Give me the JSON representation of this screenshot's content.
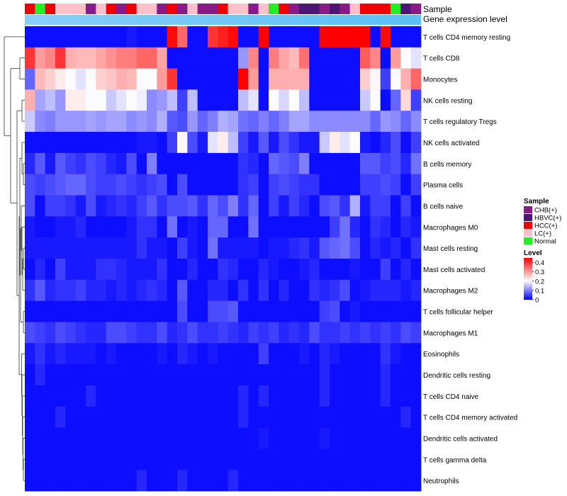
{
  "chart_data": {
    "type": "heatmap",
    "title": "",
    "annotation_labels": [
      "Sample",
      "Gene expression level"
    ],
    "sample_legend": {
      "title": "Sample",
      "entries": [
        {
          "name": "CHB(+)",
          "color": "#8B1A89"
        },
        {
          "name": "HBVC(+)",
          "color": "#4B1678"
        },
        {
          "name": "HCC(+)",
          "color": "#F00000"
        },
        {
          "name": "LC(+)",
          "color": "#FFC0CB"
        },
        {
          "name": "Normal",
          "color": "#22EE22"
        }
      ]
    },
    "level_legend": {
      "title": "Level",
      "ticks": [
        "0.4",
        "0.3",
        "0.2",
        "0.1",
        "0"
      ],
      "min": 0,
      "max": 0.45,
      "colors": [
        "#0000FF",
        "#FFFFFF",
        "#FF0000"
      ]
    },
    "sample_annotation": [
      "HCC(+)",
      "Normal",
      "HCC(+)",
      "LC(+)",
      "LC(+)",
      "LC(+)",
      "CHB(+)",
      "LC(+)",
      "HCC(+)",
      "CHB(+)",
      "HCC(+)",
      "LC(+)",
      "LC(+)",
      "CHB(+)",
      "HCC(+)",
      "CHB(+)",
      "LC(+)",
      "CHB(+)",
      "CHB(+)",
      "HCC(+)",
      "LC(+)",
      "LC(+)",
      "CHB(+)",
      "LC(+)",
      "Normal",
      "HCC(+)",
      "CHB(+)",
      "HBVC(+)",
      "HBVC(+)",
      "CHB(+)",
      "HBVC(+)",
      "CHB(+)",
      "LC(+)",
      "HCC(+)",
      "HCC(+)",
      "HCC(+)",
      "Normal",
      "HBVC(+)",
      "CHB(+)"
    ],
    "gene_expression_colors": [
      "#87CEFA",
      "#00B0F0"
    ],
    "rows": [
      {
        "name": "T cells CD4 memory resting",
        "values": [
          0.01,
          0.01,
          0.01,
          0.01,
          0.01,
          0.01,
          0.01,
          0.01,
          0.01,
          0.01,
          0.02,
          0.01,
          0.01,
          0.01,
          0.44,
          0.35,
          0.01,
          0.01,
          0.4,
          0.42,
          0.44,
          0.01,
          0.01,
          0.45,
          0.01,
          0.01,
          0.01,
          0.01,
          0.01,
          0.45,
          0.45,
          0.45,
          0.45,
          0.45,
          0.01,
          0.44,
          0.01,
          0.01,
          0.01
        ]
      },
      {
        "name": "T cells CD8",
        "values": [
          0.4,
          0.3,
          0.32,
          0.4,
          0.28,
          0.27,
          0.27,
          0.29,
          0.31,
          0.33,
          0.33,
          0.35,
          0.35,
          0.29,
          0.01,
          0.01,
          0.01,
          0.01,
          0.01,
          0.01,
          0.01,
          0.12,
          0.32,
          0.01,
          0.33,
          0.29,
          0.27,
          0.34,
          0.01,
          0.01,
          0.01,
          0.01,
          0.01,
          0.36,
          0.32,
          0.01,
          0.3,
          0.2,
          0.18
        ]
      },
      {
        "name": "Monocytes",
        "values": [
          0.08,
          0.27,
          0.25,
          0.22,
          0.2,
          0.18,
          0.2,
          0.25,
          0.26,
          0.28,
          0.27,
          0.2,
          0.2,
          0.3,
          0.4,
          0.01,
          0.01,
          0.01,
          0.01,
          0.01,
          0.01,
          0.45,
          0.3,
          0.01,
          0.28,
          0.28,
          0.28,
          0.28,
          0.01,
          0.01,
          0.01,
          0.01,
          0.01,
          0.25,
          0.21,
          0.05,
          0.2,
          0.28,
          0.35
        ]
      },
      {
        "name": "NK cells resting",
        "values": [
          0.28,
          0.13,
          0.15,
          0.12,
          0.22,
          0.22,
          0.2,
          0.2,
          0.16,
          0.18,
          0.2,
          0.19,
          0.11,
          0.12,
          0.15,
          0.05,
          0.15,
          0.01,
          0.01,
          0.01,
          0.01,
          0.15,
          0.18,
          0.01,
          0.2,
          0.17,
          0.2,
          0.15,
          0.01,
          0.01,
          0.01,
          0.01,
          0.01,
          0.16,
          0.2,
          0.01,
          0.08,
          0.24,
          0.05
        ]
      },
      {
        "name": "T cells regulatory  Tregs",
        "values": [
          0.16,
          0.11,
          0.1,
          0.12,
          0.12,
          0.12,
          0.13,
          0.12,
          0.13,
          0.13,
          0.11,
          0.12,
          0.11,
          0.14,
          0.07,
          0.06,
          0.12,
          0.08,
          0.1,
          0.14,
          0.13,
          0.09,
          0.08,
          0.1,
          0.08,
          0.1,
          0.13,
          0.13,
          0.11,
          0.11,
          0.11,
          0.11,
          0.11,
          0.11,
          0.08,
          0.12,
          0.11,
          0.08,
          0.11
        ]
      },
      {
        "name": "NK cells activated",
        "values": [
          0.01,
          0.01,
          0.01,
          0.01,
          0.01,
          0.01,
          0.01,
          0.01,
          0.01,
          0.01,
          0.01,
          0.02,
          0.02,
          0.01,
          0.05,
          0.21,
          0.06,
          0.02,
          0.18,
          0.22,
          0.15,
          0.05,
          0.02,
          0.07,
          0.02,
          0.06,
          0.04,
          0.02,
          0.02,
          0.16,
          0.22,
          0.18,
          0.2,
          0.02,
          0.01,
          0.03,
          0.06,
          0.01,
          0.05
        ]
      },
      {
        "name": "B cells memory",
        "values": [
          0.03,
          0.07,
          0.02,
          0.07,
          0.05,
          0.04,
          0.06,
          0.05,
          0.03,
          0.02,
          0.06,
          0.01,
          0.1,
          0.01,
          0.01,
          0.01,
          0.01,
          0.01,
          0.01,
          0.01,
          0.01,
          0.04,
          0.03,
          0.01,
          0.08,
          0.07,
          0.06,
          0.1,
          0.01,
          0.01,
          0.01,
          0.01,
          0.01,
          0.07,
          0.07,
          0.05,
          0.06,
          0.03,
          0.09
        ]
      },
      {
        "name": "Plasma cells",
        "values": [
          0.06,
          0.05,
          0.06,
          0.07,
          0.08,
          0.08,
          0.06,
          0.05,
          0.05,
          0.06,
          0.05,
          0.04,
          0.05,
          0.06,
          0.01,
          0.06,
          0.01,
          0.01,
          0.01,
          0.01,
          0.01,
          0.04,
          0.05,
          0.01,
          0.05,
          0.06,
          0.05,
          0.04,
          0.04,
          0.01,
          0.01,
          0.01,
          0.01,
          0.05,
          0.05,
          0.06,
          0.05,
          0.01,
          0.05
        ]
      },
      {
        "name": "B cells naive",
        "values": [
          0.06,
          0.01,
          0.05,
          0.05,
          0.04,
          0.02,
          0.06,
          0.02,
          0.03,
          0.04,
          0.03,
          0.05,
          0.07,
          0.04,
          0.06,
          0.06,
          0.07,
          0.04,
          0.08,
          0.06,
          0.1,
          0.04,
          0.08,
          0.01,
          0.05,
          0.02,
          0.05,
          0.03,
          0.01,
          0.06,
          0.07,
          0.04,
          0.14,
          0.02,
          0.05,
          0.05,
          0.01,
          0.05,
          0.01
        ]
      },
      {
        "name": "Macrophages M0",
        "values": [
          0.02,
          0.01,
          0.01,
          0.02,
          0.02,
          0.03,
          0.01,
          0.01,
          0.01,
          0.01,
          0.02,
          0.04,
          0.04,
          0.01,
          0.09,
          0.01,
          0.02,
          0.01,
          0.08,
          0.08,
          0.01,
          0.01,
          0.09,
          0.01,
          0.01,
          0.01,
          0.01,
          0.01,
          0.01,
          0.01,
          0.05,
          0.09,
          0.03,
          0.01,
          0.04,
          0.03,
          0.01,
          0.03,
          0.02
        ]
      },
      {
        "name": "Mast cells resting",
        "values": [
          0.02,
          0.02,
          0.02,
          0.02,
          0.02,
          0.02,
          0.02,
          0.02,
          0.02,
          0.02,
          0.02,
          0.04,
          0.02,
          0.02,
          0.01,
          0.05,
          0.02,
          0.01,
          0.09,
          0.02,
          0.02,
          0.02,
          0.02,
          0.01,
          0.02,
          0.02,
          0.03,
          0.04,
          0.02,
          0.07,
          0.08,
          0.09,
          0.06,
          0.01,
          0.03,
          0.02,
          0.03,
          0.01,
          0.04
        ]
      },
      {
        "name": "Mast cells activated",
        "values": [
          0.01,
          0.03,
          0.01,
          0.05,
          0.02,
          0.02,
          0.02,
          0.04,
          0.04,
          0.03,
          0.02,
          0.02,
          0.02,
          0.04,
          0.01,
          0.01,
          0.03,
          0.01,
          0.01,
          0.04,
          0.03,
          0.01,
          0.01,
          0.03,
          0.02,
          0.01,
          0.01,
          0.02,
          0.03,
          0.01,
          0.01,
          0.01,
          0.02,
          0.01,
          0.01,
          0.05,
          0.01,
          0.03,
          0.01
        ]
      },
      {
        "name": "Macrophages M2",
        "values": [
          0.04,
          0.07,
          0.03,
          0.04,
          0.04,
          0.05,
          0.03,
          0.03,
          0.02,
          0.03,
          0.02,
          0.03,
          0.04,
          0.03,
          0.01,
          0.07,
          0.01,
          0.01,
          0.03,
          0.03,
          0.01,
          0.04,
          0.01,
          0.04,
          0.01,
          0.03,
          0.01,
          0.01,
          0.04,
          0.03,
          0.04,
          0.06,
          0.01,
          0.02,
          0.03,
          0.03,
          0.03,
          0.02,
          0.03
        ]
      },
      {
        "name": "T cells follicular helper",
        "values": [
          0.01,
          0.01,
          0.01,
          0.01,
          0.01,
          0.01,
          0.01,
          0.01,
          0.01,
          0.01,
          0.01,
          0.01,
          0.01,
          0.01,
          0.01,
          0.06,
          0.01,
          0.01,
          0.06,
          0.06,
          0.07,
          0.01,
          0.01,
          0.01,
          0.01,
          0.01,
          0.01,
          0.01,
          0.01,
          0.05,
          0.06,
          0.01,
          0.02,
          0.01,
          0.01,
          0.01,
          0.01,
          0.01,
          0.01
        ]
      },
      {
        "name": "Macrophages M1",
        "values": [
          0.06,
          0.05,
          0.04,
          0.06,
          0.05,
          0.04,
          0.03,
          0.03,
          0.06,
          0.06,
          0.05,
          0.04,
          0.04,
          0.06,
          0.03,
          0.04,
          0.06,
          0.04,
          0.04,
          0.05,
          0.04,
          0.03,
          0.05,
          0.04,
          0.05,
          0.03,
          0.04,
          0.03,
          0.06,
          0.04,
          0.04,
          0.05,
          0.04,
          0.05,
          0.04,
          0.05,
          0.04,
          0.06,
          0.05
        ]
      },
      {
        "name": "Eosinophils",
        "values": [
          0.02,
          0.04,
          0.02,
          0.03,
          0.02,
          0.02,
          0.02,
          0.01,
          0.02,
          0.01,
          0.01,
          0.01,
          0.01,
          0.02,
          0.01,
          0.03,
          0.02,
          0.01,
          0.02,
          0.01,
          0.01,
          0.01,
          0.01,
          0.05,
          0.01,
          0.01,
          0.01,
          0.02,
          0.01,
          0.03,
          0.02,
          0.01,
          0.01,
          0.01,
          0.01,
          0.04,
          0.02,
          0.01,
          0.01
        ]
      },
      {
        "name": "Dendritic cells resting",
        "values": [
          0.01,
          0.03,
          0.01,
          0.01,
          0.01,
          0.01,
          0.01,
          0.01,
          0.01,
          0.01,
          0.01,
          0.01,
          0.01,
          0.01,
          0.01,
          0.01,
          0.01,
          0.01,
          0.01,
          0.01,
          0.01,
          0.01,
          0.01,
          0.01,
          0.01,
          0.01,
          0.01,
          0.01,
          0.01,
          0.03,
          0.01,
          0.01,
          0.01,
          0.01,
          0.01,
          0.03,
          0.01,
          0.01,
          0.01
        ]
      },
      {
        "name": "T cells CD4 naive",
        "values": [
          0.01,
          0.01,
          0.01,
          0.01,
          0.01,
          0.01,
          0.03,
          0.01,
          0.01,
          0.01,
          0.01,
          0.01,
          0.01,
          0.01,
          0.01,
          0.01,
          0.01,
          0.01,
          0.01,
          0.01,
          0.01,
          0.03,
          0.01,
          0.03,
          0.01,
          0.01,
          0.01,
          0.01,
          0.01,
          0.03,
          0.01,
          0.01,
          0.01,
          0.01,
          0.01,
          0.03,
          0.01,
          0.01,
          0.01
        ]
      },
      {
        "name": "T cells CD4 memory activated",
        "values": [
          0.01,
          0.01,
          0.01,
          0.03,
          0.01,
          0.01,
          0.01,
          0.01,
          0.01,
          0.01,
          0.01,
          0.01,
          0.01,
          0.01,
          0.01,
          0.01,
          0.01,
          0.01,
          0.01,
          0.01,
          0.01,
          0.03,
          0.01,
          0.01,
          0.01,
          0.01,
          0.01,
          0.01,
          0.01,
          0.01,
          0.01,
          0.01,
          0.01,
          0.01,
          0.01,
          0.01,
          0.01,
          0.03,
          0.01
        ]
      },
      {
        "name": "Dendritic cells activated",
        "values": [
          0.01,
          0.01,
          0.01,
          0.01,
          0.01,
          0.01,
          0.01,
          0.01,
          0.01,
          0.01,
          0.01,
          0.01,
          0.01,
          0.01,
          0.01,
          0.01,
          0.01,
          0.01,
          0.01,
          0.01,
          0.01,
          0.01,
          0.01,
          0.02,
          0.01,
          0.01,
          0.01,
          0.01,
          0.01,
          0.02,
          0.01,
          0.01,
          0.01,
          0.01,
          0.01,
          0.01,
          0.01,
          0.01,
          0.01
        ]
      },
      {
        "name": "T cells gamma delta",
        "values": [
          0.01,
          0.01,
          0.01,
          0.01,
          0.01,
          0.01,
          0.01,
          0.01,
          0.01,
          0.01,
          0.01,
          0.01,
          0.01,
          0.01,
          0.01,
          0.01,
          0.01,
          0.01,
          0.01,
          0.01,
          0.01,
          0.01,
          0.01,
          0.01,
          0.01,
          0.01,
          0.01,
          0.01,
          0.01,
          0.01,
          0.01,
          0.01,
          0.01,
          0.01,
          0.01,
          0.01,
          0.01,
          0.01,
          0.01
        ]
      },
      {
        "name": "Neutrophils",
        "values": [
          0.01,
          0.01,
          0.01,
          0.01,
          0.01,
          0.01,
          0.01,
          0.01,
          0.01,
          0.01,
          0.01,
          0.03,
          0.01,
          0.01,
          0.01,
          0.03,
          0.01,
          0.01,
          0.01,
          0.01,
          0.03,
          0.01,
          0.01,
          0.01,
          0.01,
          0.01,
          0.01,
          0.01,
          0.01,
          0.01,
          0.01,
          0.01,
          0.01,
          0.01,
          0.01,
          0.01,
          0.01,
          0.01,
          0.01
        ]
      }
    ]
  }
}
